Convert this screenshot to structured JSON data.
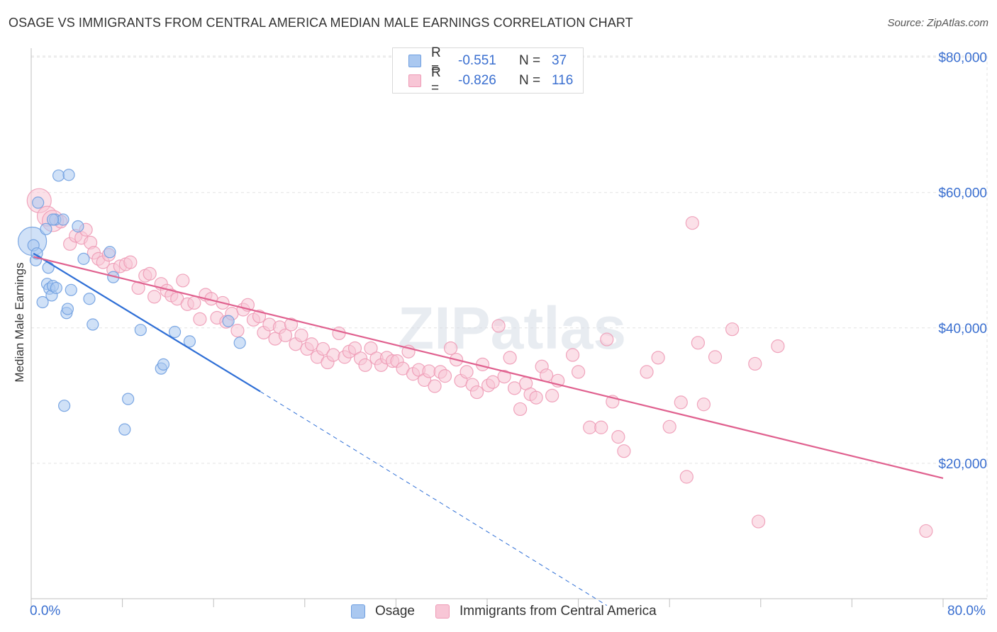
{
  "header": {
    "title": "OSAGE VS IMMIGRANTS FROM CENTRAL AMERICA MEDIAN MALE EARNINGS CORRELATION CHART",
    "source": "Source: ZipAtlas.com"
  },
  "watermark": "ZIPatlas",
  "legend_top": {
    "rows": [
      {
        "r_label": "R =",
        "r_value": "-0.551",
        "n_label": "N =",
        "n_value": "37",
        "color": "#aac8f0",
        "border": "#6f9fe0"
      },
      {
        "r_label": "R =",
        "r_value": "-0.826",
        "n_label": "N =",
        "n_value": "116",
        "color": "#f8c6d6",
        "border": "#ee9bb6"
      }
    ]
  },
  "x_axis": {
    "min_label": "0.0%",
    "max_label": "80.0%"
  },
  "colors": {
    "blue": "#6f9fe0",
    "blue_fill": "#aac8f0",
    "blue_line": "#2f6fd6",
    "pink": "#ee9bb6",
    "pink_fill": "#f8c6d6",
    "pink_line": "#e0618f",
    "tick_text": "#3a6fd0",
    "grid": "#e3e3e3"
  },
  "chart_data": {
    "type": "scatter",
    "title": "OSAGE VS IMMIGRANTS FROM CENTRAL AMERICA MEDIAN MALE EARNINGS CORRELATION CHART",
    "xlabel": "",
    "ylabel": "Median Male Earnings",
    "xlim": [
      0,
      80
    ],
    "ylim": [
      0,
      82000
    ],
    "y_ticks": [
      {
        "value": 20000,
        "label": "$20,000"
      },
      {
        "value": 40000,
        "label": "$40,000"
      },
      {
        "value": 60000,
        "label": "$60,000"
      },
      {
        "value": 80000,
        "label": "$80,000"
      }
    ],
    "grid": true,
    "legend": "bottom",
    "series": [
      {
        "name": "Osage",
        "r": -0.551,
        "n": 37,
        "trend": {
          "x0": 0.2,
          "y0": 51000,
          "x1": 20.1,
          "y1": 30600,
          "dash_to_x": 50.5,
          "dash_to_y": -1000
        },
        "points": [
          [
            0.1,
            52800,
            20
          ],
          [
            0.2,
            52200,
            8
          ],
          [
            0.4,
            50000,
            8
          ],
          [
            0.5,
            51000,
            8
          ],
          [
            0.6,
            58500,
            8
          ],
          [
            1.0,
            43800,
            8
          ],
          [
            1.3,
            54600,
            8
          ],
          [
            1.4,
            46500,
            8
          ],
          [
            1.5,
            48900,
            8
          ],
          [
            1.6,
            45800,
            8
          ],
          [
            1.8,
            44800,
            8
          ],
          [
            1.9,
            46200,
            8
          ],
          [
            2.1,
            56000,
            8
          ],
          [
            2.2,
            45900,
            8
          ],
          [
            2.4,
            62500,
            8
          ],
          [
            2.8,
            56000,
            8
          ],
          [
            2.9,
            28500,
            8
          ],
          [
            3.1,
            42200,
            8
          ],
          [
            3.2,
            42800,
            8
          ],
          [
            3.3,
            62600,
            8
          ],
          [
            3.5,
            45600,
            8
          ],
          [
            4.1,
            55000,
            8
          ],
          [
            4.6,
            50200,
            8
          ],
          [
            5.1,
            44300,
            8
          ],
          [
            5.4,
            40500,
            8
          ],
          [
            6.9,
            51200,
            8
          ],
          [
            7.2,
            47500,
            8
          ],
          [
            8.2,
            25000,
            8
          ],
          [
            8.5,
            29500,
            8
          ],
          [
            9.6,
            39700,
            8
          ],
          [
            11.4,
            34000,
            8
          ],
          [
            11.6,
            34600,
            8
          ],
          [
            12.6,
            39400,
            8
          ],
          [
            13.9,
            38000,
            8
          ],
          [
            17.3,
            41000,
            8
          ],
          [
            18.3,
            37800,
            8
          ],
          [
            1.9,
            56000,
            8
          ]
        ]
      },
      {
        "name": "Immigrants from Central America",
        "r": -0.826,
        "n": 116,
        "trend": {
          "x0": 0.2,
          "y0": 50500,
          "x1": 80.0,
          "y1": 17800
        },
        "points": [
          [
            0.7,
            58800,
            17
          ],
          [
            1.4,
            56500,
            14
          ],
          [
            1.9,
            55800,
            15
          ],
          [
            2.6,
            55700,
            9
          ],
          [
            3.4,
            52400,
            9
          ],
          [
            3.9,
            53600,
            9
          ],
          [
            4.4,
            53300,
            9
          ],
          [
            4.8,
            54500,
            9
          ],
          [
            5.2,
            52600,
            9
          ],
          [
            5.5,
            51100,
            9
          ],
          [
            5.9,
            50200,
            9
          ],
          [
            6.3,
            49700,
            9
          ],
          [
            6.8,
            50800,
            9
          ],
          [
            7.2,
            48600,
            9
          ],
          [
            7.8,
            49100,
            9
          ],
          [
            8.3,
            49400,
            9
          ],
          [
            8.7,
            49700,
            9
          ],
          [
            9.4,
            45900,
            9
          ],
          [
            10.0,
            47700,
            9
          ],
          [
            10.4,
            48000,
            9
          ],
          [
            10.8,
            44600,
            9
          ],
          [
            11.4,
            46500,
            9
          ],
          [
            11.9,
            45500,
            9
          ],
          [
            12.3,
            44800,
            9
          ],
          [
            12.8,
            44300,
            9
          ],
          [
            13.3,
            47000,
            9
          ],
          [
            13.7,
            43500,
            9
          ],
          [
            14.3,
            43700,
            9
          ],
          [
            14.8,
            41300,
            9
          ],
          [
            15.3,
            44900,
            9
          ],
          [
            15.8,
            44300,
            9
          ],
          [
            16.3,
            41500,
            9
          ],
          [
            16.8,
            43700,
            9
          ],
          [
            17.1,
            40900,
            9
          ],
          [
            17.6,
            42100,
            9
          ],
          [
            18.1,
            39600,
            9
          ],
          [
            18.6,
            42700,
            9
          ],
          [
            19.0,
            43400,
            9
          ],
          [
            19.5,
            41200,
            9
          ],
          [
            20.0,
            41700,
            9
          ],
          [
            20.4,
            39300,
            9
          ],
          [
            20.9,
            40500,
            9
          ],
          [
            21.4,
            38400,
            9
          ],
          [
            21.8,
            40100,
            9
          ],
          [
            22.3,
            38900,
            9
          ],
          [
            22.8,
            40500,
            9
          ],
          [
            23.2,
            37600,
            9
          ],
          [
            23.7,
            38900,
            9
          ],
          [
            24.2,
            36900,
            9
          ],
          [
            24.6,
            37600,
            9
          ],
          [
            25.1,
            35700,
            9
          ],
          [
            25.6,
            36900,
            9
          ],
          [
            26.0,
            34900,
            9
          ],
          [
            26.5,
            36000,
            9
          ],
          [
            27.0,
            39200,
            9
          ],
          [
            27.5,
            35700,
            9
          ],
          [
            27.9,
            36500,
            9
          ],
          [
            28.4,
            37000,
            9
          ],
          [
            28.9,
            35500,
            9
          ],
          [
            29.3,
            34500,
            9
          ],
          [
            29.8,
            37000,
            9
          ],
          [
            30.3,
            35500,
            9
          ],
          [
            30.7,
            34500,
            9
          ],
          [
            31.2,
            35600,
            9
          ],
          [
            31.7,
            35100,
            9
          ],
          [
            32.1,
            35100,
            9
          ],
          [
            32.6,
            34000,
            9
          ],
          [
            33.1,
            36500,
            9
          ],
          [
            33.5,
            33200,
            9
          ],
          [
            34.0,
            33800,
            9
          ],
          [
            34.5,
            32300,
            9
          ],
          [
            34.9,
            33600,
            9
          ],
          [
            35.4,
            31400,
            9
          ],
          [
            35.9,
            33500,
            9
          ],
          [
            36.3,
            32900,
            9
          ],
          [
            36.8,
            37000,
            9
          ],
          [
            37.3,
            35300,
            9
          ],
          [
            37.7,
            32200,
            9
          ],
          [
            38.2,
            33500,
            9
          ],
          [
            38.7,
            31600,
            9
          ],
          [
            39.1,
            30500,
            9
          ],
          [
            39.6,
            34600,
            9
          ],
          [
            40.1,
            31500,
            9
          ],
          [
            40.5,
            32000,
            9
          ],
          [
            41.0,
            40300,
            9
          ],
          [
            41.5,
            32800,
            9
          ],
          [
            42.0,
            35600,
            9
          ],
          [
            42.4,
            31100,
            9
          ],
          [
            42.9,
            28000,
            9
          ],
          [
            43.4,
            31800,
            9
          ],
          [
            43.8,
            30200,
            9
          ],
          [
            44.3,
            29700,
            9
          ],
          [
            44.8,
            34300,
            9
          ],
          [
            45.2,
            33000,
            9
          ],
          [
            45.7,
            30000,
            9
          ],
          [
            46.2,
            32200,
            9
          ],
          [
            47.5,
            36000,
            9
          ],
          [
            48.0,
            33500,
            9
          ],
          [
            49.0,
            25300,
            9
          ],
          [
            50.0,
            25300,
            9
          ],
          [
            50.5,
            38300,
            9
          ],
          [
            51.0,
            29100,
            9
          ],
          [
            51.5,
            23900,
            9
          ],
          [
            52.0,
            21800,
            9
          ],
          [
            54.0,
            33500,
            9
          ],
          [
            55.0,
            35600,
            9
          ],
          [
            56.0,
            25400,
            9
          ],
          [
            57.0,
            29000,
            9
          ],
          [
            57.5,
            18000,
            9
          ],
          [
            58.0,
            55500,
            9
          ],
          [
            58.5,
            37800,
            9
          ],
          [
            59.0,
            28700,
            9
          ],
          [
            60.0,
            35700,
            9
          ],
          [
            61.5,
            39800,
            9
          ],
          [
            63.5,
            34700,
            9
          ],
          [
            63.8,
            11400,
            9
          ],
          [
            65.5,
            37300,
            9
          ],
          [
            78.5,
            10000,
            9
          ]
        ]
      }
    ]
  },
  "legend_bottom": [
    {
      "label": "Osage",
      "color": "#aac8f0",
      "border": "#6f9fe0"
    },
    {
      "label": "Immigrants from Central America",
      "color": "#f8c6d6",
      "border": "#ee9bb6"
    }
  ]
}
